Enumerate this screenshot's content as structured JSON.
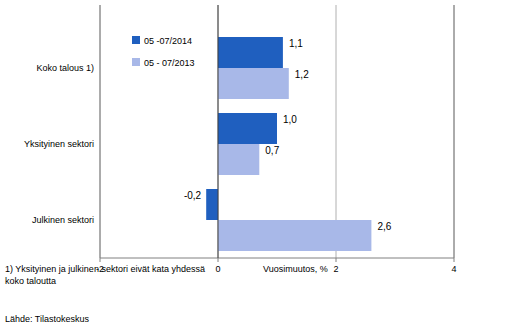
{
  "chart_data": {
    "type": "bar",
    "orientation": "horizontal",
    "categories": [
      "Koko talous 1)",
      "Yksityinen sektori",
      "Julkinen sektori"
    ],
    "series": [
      {
        "name": "05 -07/2014",
        "color": "#1f5fbf",
        "values": [
          1.1,
          1.0,
          -0.2
        ],
        "value_labels": [
          "1,1",
          "1,0",
          "-0,2"
        ]
      },
      {
        "name": "05 - 07/2013",
        "color": "#a8b8e8",
        "values": [
          1.2,
          0.7,
          2.6
        ],
        "value_labels": [
          "1,2",
          "0,7",
          "2,6"
        ]
      }
    ],
    "x_label": "Vuosimuutos, %",
    "xlim": [
      -2,
      4
    ],
    "xticks": [
      -2,
      0,
      2,
      4
    ],
    "grid": true,
    "legend": "upper left",
    "data_labels": true,
    "annotations": [
      "1) Yksityinen ja julkinen sektori eivät  kata yhdessä",
      "koko taloutta"
    ],
    "source": "Lähde: Tilastokeskus"
  }
}
